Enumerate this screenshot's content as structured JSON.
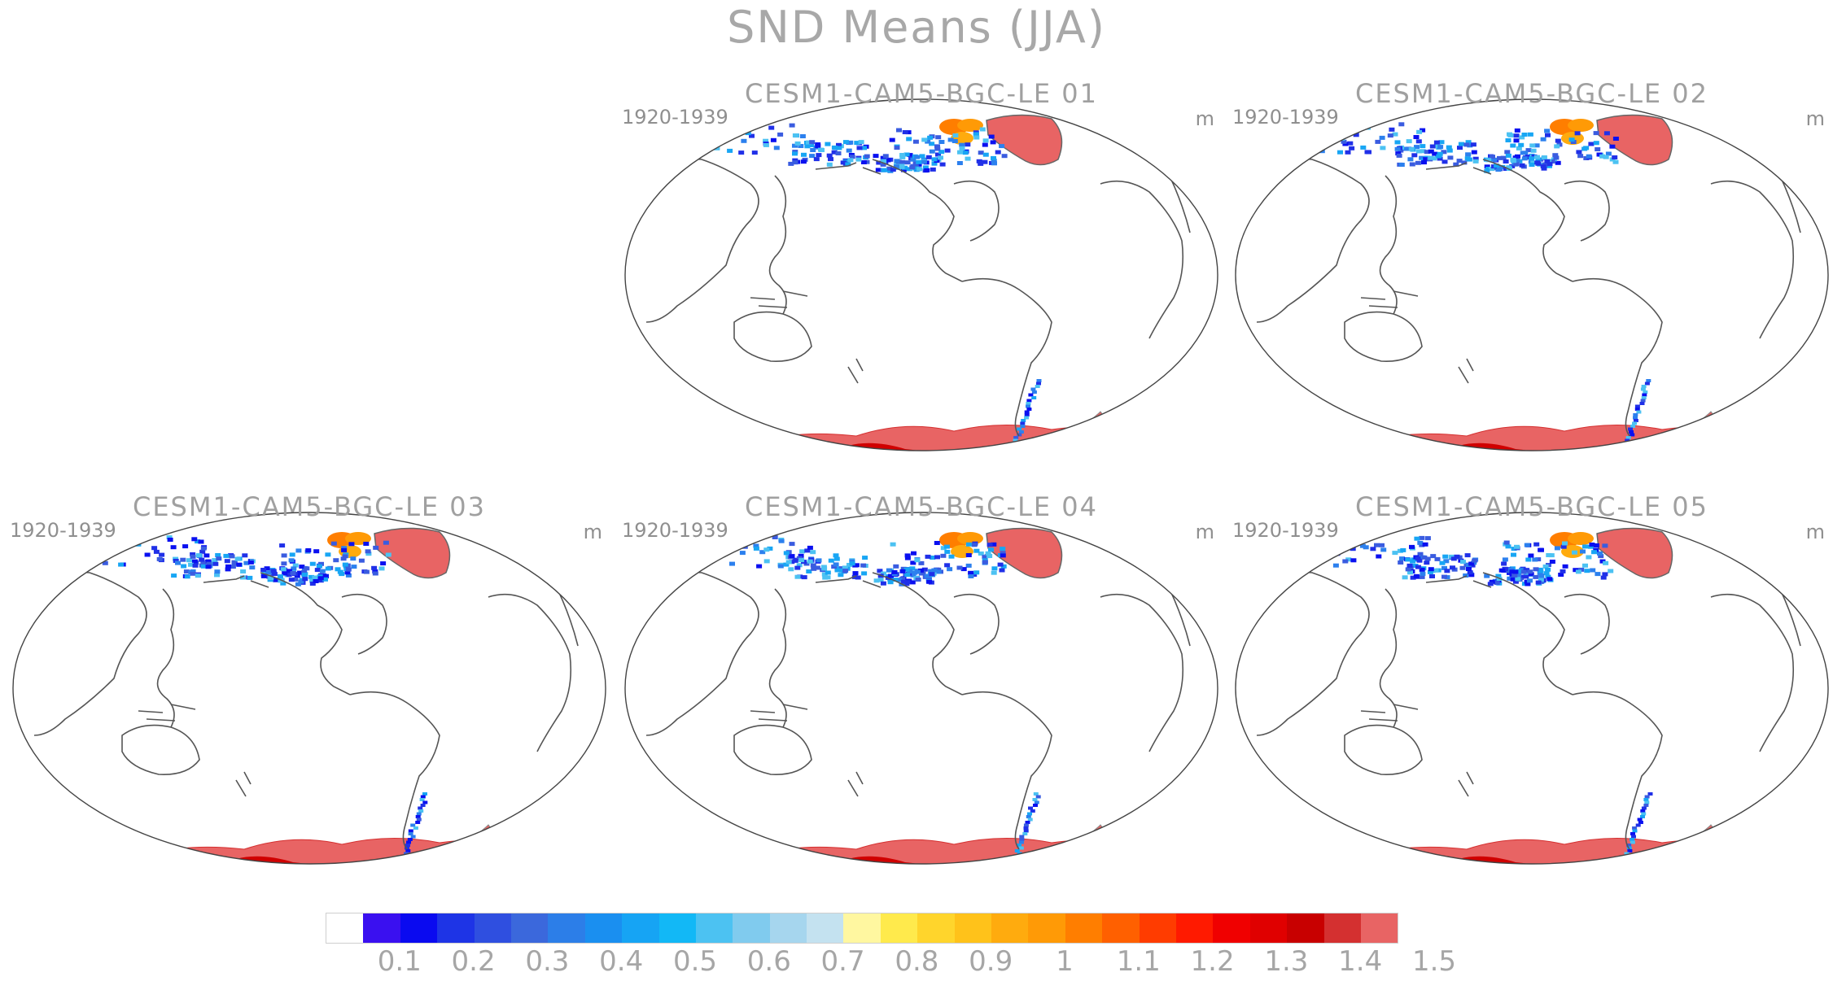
{
  "title": "SND Means (JJA)",
  "panels": [
    {
      "title": "CESM1-CAM5-BGC-LE 01",
      "period": "1920-1939",
      "unit": "m"
    },
    {
      "title": "CESM1-CAM5-BGC-LE 02",
      "period": "1920-1939",
      "unit": "m"
    },
    {
      "title": "CESM1-CAM5-BGC-LE 03",
      "period": "1920-1939",
      "unit": "m"
    },
    {
      "title": "CESM1-CAM5-BGC-LE 04",
      "period": "1920-1939",
      "unit": "m"
    },
    {
      "title": "CESM1-CAM5-BGC-LE 05",
      "period": "1920-1939",
      "unit": "m"
    }
  ],
  "colorbar": {
    "colors": [
      "#ffffff",
      "#3a10f0",
      "#0a0af0",
      "#1e34e6",
      "#2f4fe0",
      "#3b68dc",
      "#2c7ee8",
      "#1a8ff0",
      "#16a4f4",
      "#12b8f6",
      "#4cc2f2",
      "#80cbee",
      "#a6d6ee",
      "#c4e2f0",
      "#fff7a0",
      "#ffea4c",
      "#ffd52c",
      "#ffc21a",
      "#ffab0e",
      "#ff9a06",
      "#ff7e00",
      "#ff6000",
      "#ff3c00",
      "#ff1a00",
      "#f00000",
      "#e00000",
      "#c80000",
      "#d43030",
      "#e86464"
    ],
    "labels": [
      "0.1",
      "0.2",
      "0.3",
      "0.4",
      "0.5",
      "0.6",
      "0.7",
      "0.8",
      "0.9",
      "1",
      "1.1",
      "1.2",
      "1.3",
      "1.4",
      "1.5"
    ]
  }
}
